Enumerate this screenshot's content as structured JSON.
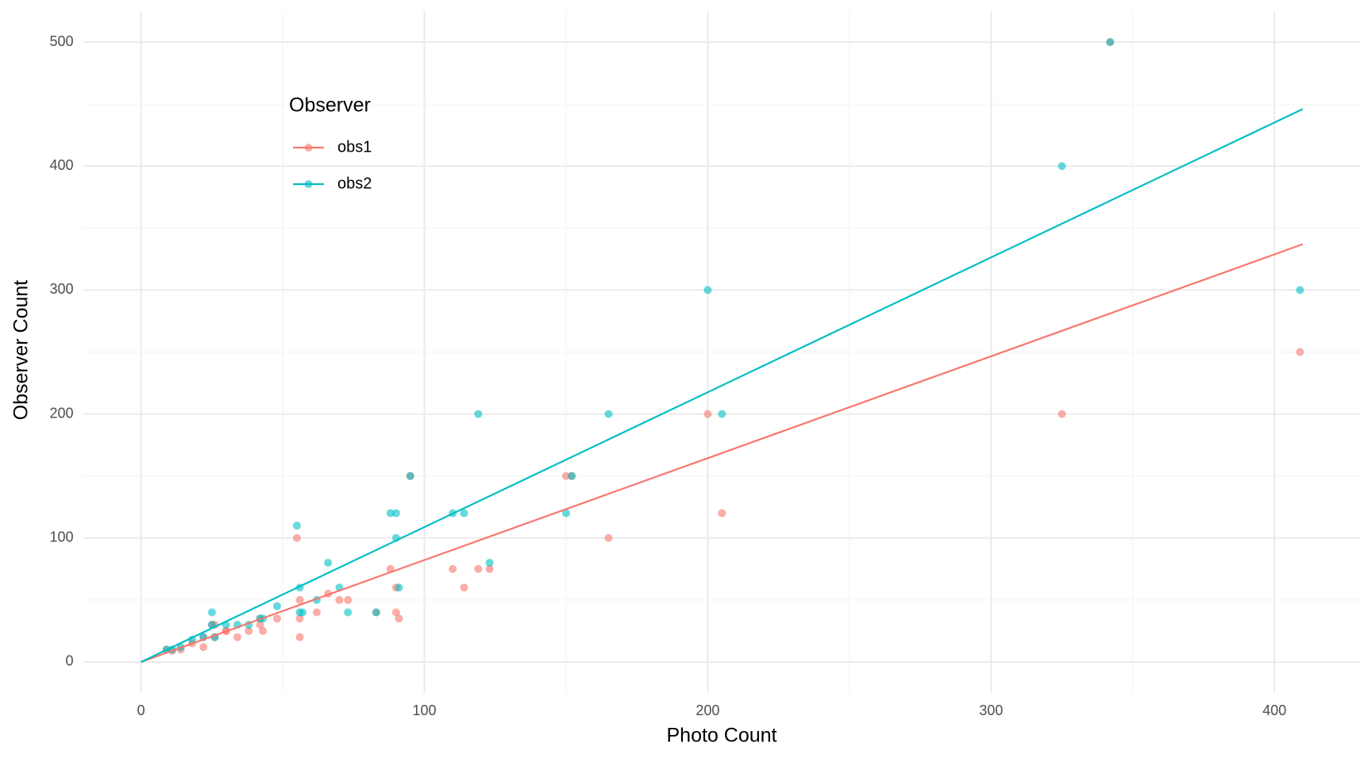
{
  "chart_data": {
    "type": "scatter",
    "x_label": "Photo Count",
    "y_label": "Observer Count",
    "legend_title": "Observer",
    "xlim": [
      -20.5,
      430.5
    ],
    "ylim": [
      -25,
      525
    ],
    "xticks": [
      0,
      100,
      200,
      300,
      400
    ],
    "yticks": [
      0,
      100,
      200,
      300,
      400,
      500
    ],
    "minor_xticks": [
      50,
      150,
      250,
      350
    ],
    "minor_yticks": [
      50,
      150,
      250,
      350,
      450
    ],
    "grid": true,
    "series": [
      {
        "name": "obs1",
        "color": "#F8766D",
        "x": [
          9,
          11,
          14,
          18,
          22,
          22,
          25,
          26,
          26,
          30,
          30,
          34,
          38,
          42,
          42,
          43,
          48,
          55,
          56,
          56,
          56,
          62,
          66,
          70,
          73,
          83,
          88,
          90,
          90,
          91,
          95,
          110,
          114,
          119,
          123,
          150,
          152,
          165,
          200,
          205,
          325,
          342,
          409
        ],
        "values": [
          10,
          9,
          10,
          15,
          12,
          20,
          30,
          20,
          30,
          25,
          25,
          20,
          25,
          30,
          35,
          25,
          35,
          100,
          50,
          35,
          20,
          40,
          55,
          50,
          50,
          40,
          75,
          60,
          40,
          35,
          150,
          75,
          60,
          75,
          75,
          150,
          150,
          100,
          200,
          120,
          200,
          500,
          250
        ],
        "fit": {
          "x": [
            0,
            410
          ],
          "values": [
            0,
            337
          ]
        }
      },
      {
        "name": "obs2",
        "color": "#00BFC4",
        "x": [
          9,
          11,
          14,
          18,
          22,
          25,
          25,
          26,
          30,
          34,
          38,
          42,
          43,
          48,
          55,
          56,
          56,
          57,
          62,
          66,
          70,
          73,
          83,
          88,
          90,
          90,
          91,
          95,
          110,
          114,
          119,
          123,
          150,
          152,
          165,
          200,
          205,
          325,
          342,
          409
        ],
        "values": [
          10,
          10,
          12,
          18,
          20,
          40,
          30,
          20,
          30,
          30,
          30,
          35,
          35,
          45,
          110,
          60,
          40,
          40,
          50,
          80,
          60,
          40,
          40,
          120,
          120,
          100,
          60,
          150,
          120,
          120,
          200,
          80,
          120,
          150,
          200,
          300,
          200,
          400,
          500,
          300
        ],
        "fit": {
          "x": [
            0,
            410
          ],
          "values": [
            0,
            446
          ]
        }
      }
    ]
  }
}
